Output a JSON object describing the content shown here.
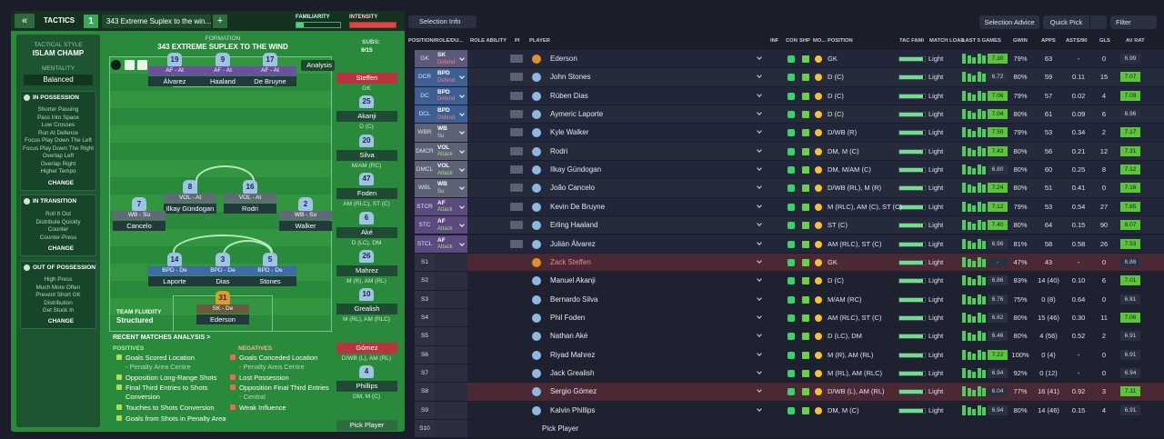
{
  "tactics_bar": {
    "back": "«",
    "label": "TACTICS",
    "slot": "1",
    "tactic_name": "343 Extreme Suplex to the win...",
    "add": "+",
    "familiarity": "FAMILIARITY",
    "intensity": "INTENSITY"
  },
  "sidebar": {
    "style_label": "TACTICAL STYLE",
    "style": "ISLAM CHAMP",
    "mentality_label": "MENTALITY",
    "mentality": "Balanced",
    "sections": [
      {
        "title": "IN POSSESSION",
        "items": [
          "Shorter Passing",
          "Pass Into Space",
          "Low Crosses",
          "Run At Defence",
          "Focus Play Down The Left",
          "Focus Play Down The Right",
          "Overlap Left",
          "Overlap Right",
          "Higher Tempo"
        ],
        "button": "CHANGE"
      },
      {
        "title": "IN TRANSITION",
        "items": [
          "Roll It Out",
          "Distribute Quickly",
          "Counter",
          "Counter-Press"
        ],
        "button": "CHANGE"
      },
      {
        "title": "OUT OF POSSESSION",
        "items": [
          "High Press",
          "Much More Often",
          "Prevent Short GK",
          "Distribution",
          "Get Stuck In"
        ],
        "button": "CHANGE"
      }
    ]
  },
  "pitch": {
    "formation_label": "FORMATION",
    "formation": "343 EXTREME SUPLEX TO THE WIND",
    "subs_label": "SUBS:",
    "subs_count": "9/15",
    "analysis": "Analysis",
    "fluidity_label": "TEAM FLUIDITY",
    "fluidity": "Structured",
    "players": [
      {
        "number": "19",
        "role": "AF - At",
        "name": "Álvarez"
      },
      {
        "number": "9",
        "role": "AF - At",
        "name": "Haaland"
      },
      {
        "number": "17",
        "role": "AF - At",
        "name": "De Bruyne"
      },
      {
        "number": "8",
        "role": "VOL - At",
        "name": "Ilkay Gündogan"
      },
      {
        "number": "16",
        "role": "VOL - At",
        "name": "Rodri"
      },
      {
        "number": "7",
        "role": "WB - Su",
        "name": "Cancelo"
      },
      {
        "number": "2",
        "role": "WB - Su",
        "name": "Walker"
      },
      {
        "number": "14",
        "role": "BPD - De",
        "name": "Laporte"
      },
      {
        "number": "3",
        "role": "BPD - De",
        "name": "Dias"
      },
      {
        "number": "5",
        "role": "BPD - De",
        "name": "Stones"
      },
      {
        "number": "31",
        "role": "SK - De",
        "name": "Ederson"
      }
    ]
  },
  "subs": [
    {
      "name": "Steffen",
      "position": "GK"
    },
    {
      "number": "25",
      "name": "Akanji",
      "position": "D (C)"
    },
    {
      "number": "20",
      "name": "Silva",
      "position": "M/AM (RC)"
    },
    {
      "number": "47",
      "name": "Foden",
      "position": "AM (RLC), ST (C)"
    },
    {
      "number": "6",
      "name": "Aké",
      "position": "D (LC), DM"
    },
    {
      "number": "26",
      "name": "Mahrez",
      "position": "M (R), AM (RL)"
    },
    {
      "number": "10",
      "name": "Grealish",
      "position": "M (RL), AM (RLC)"
    },
    {
      "name": "Gómez",
      "position": "D/WB (L), AM (RL)"
    },
    {
      "number": "4",
      "name": "Phillips",
      "position": "DM, M (C)"
    },
    {
      "name": "Pick Player"
    }
  ],
  "analysis": {
    "title": "RECENT MATCHES ANALYSIS >",
    "positives_label": "POSITIVES",
    "positives": [
      [
        "Goals Scored Location",
        "- Penalty Area Centre"
      ],
      [
        "Opposition Long-Range Shots"
      ],
      [
        "Final Third Entries to Shots",
        "Conversion"
      ],
      [
        "Touches to Shots Conversion"
      ],
      [
        "Goals from Shots in Penalty Area"
      ]
    ],
    "negatives_label": "NEGATIVES",
    "negatives": [
      [
        "Goals Conceded Location",
        "- Penalty Area Centre"
      ],
      [
        "Lost Possession"
      ],
      [
        "Opposition Final Third Entries",
        "- Central"
      ],
      [
        "Weak Influence"
      ]
    ]
  },
  "toolbar": {
    "selection_info": "Selection Info",
    "selection_advice": "Selection Advice",
    "quick_pick": "Quick Pick",
    "filter": "Filter"
  },
  "table": {
    "columns": [
      "POSITION/ROLE/DU...",
      "ROLE ABILITY",
      "PI",
      "PLAYER",
      "INF",
      "CON",
      "SHP",
      "MO...",
      "POSITION",
      "TAC FAMI",
      "MATCH LOAD",
      "LAST 5 GAMES",
      "GWIN",
      "APPS",
      "ASTS/90",
      "GLS",
      "AV RAT"
    ],
    "rows": [
      {
        "pos": "GK",
        "role": "SK",
        "duty": "Defend",
        "player": "Ederson",
        "position": "GK",
        "load": "Light",
        "last5": "7.30",
        "gwin": "79%",
        "apps": "63",
        "asts": "-",
        "gls": "0",
        "avrat": "6.99"
      },
      {
        "pos": "DCR",
        "role": "BPD",
        "duty": "Defend",
        "player": "John Stones",
        "position": "D (C)",
        "load": "Light",
        "last5": "6.72",
        "gwin": "80%",
        "apps": "59",
        "asts": "0.11",
        "gls": "15",
        "avrat": "7.07"
      },
      {
        "pos": "DC",
        "role": "BPD",
        "duty": "Defend",
        "player": "Rúben Dias",
        "position": "D (C)",
        "load": "Light",
        "last5": "7.06",
        "gwin": "79%",
        "apps": "57",
        "asts": "0.02",
        "gls": "4",
        "avrat": "7.09"
      },
      {
        "pos": "DCL",
        "role": "BPD",
        "duty": "Defend",
        "player": "Aymeric Laporte",
        "position": "D (C)",
        "load": "Light",
        "last5": "7.04",
        "gwin": "80%",
        "apps": "61",
        "asts": "0.09",
        "gls": "6",
        "avrat": "6.96"
      },
      {
        "pos": "WBR",
        "role": "WB",
        "duty": "Su",
        "player": "Kyle Walker",
        "position": "D/WB (R)",
        "load": "Light",
        "last5": "7.50",
        "gwin": "79%",
        "apps": "53",
        "asts": "0.34",
        "gls": "2",
        "avrat": "7.17"
      },
      {
        "pos": "DMCR",
        "role": "VOL",
        "duty": "Attack",
        "player": "Rodri",
        "position": "DM, M (C)",
        "load": "Light",
        "last5": "7.43",
        "gwin": "80%",
        "apps": "56",
        "asts": "0.21",
        "gls": "12",
        "avrat": "7.31"
      },
      {
        "pos": "DMCL",
        "role": "VOL",
        "duty": "Attack",
        "player": "Ilkay Gündogan",
        "position": "DM, M/AM (C)",
        "load": "Light",
        "last5": "6.80",
        "gwin": "80%",
        "apps": "60",
        "asts": "0.25",
        "gls": "8",
        "avrat": "7.12"
      },
      {
        "pos": "WBL",
        "role": "WB",
        "duty": "Su",
        "player": "João Cancelo",
        "position": "D/WB (RL), M (R)",
        "load": "Light",
        "last5": "7.24",
        "gwin": "80%",
        "apps": "51",
        "asts": "0.41",
        "gls": "0",
        "avrat": "7.16"
      },
      {
        "pos": "STCR",
        "role": "AF",
        "duty": "Attack",
        "player": "Kevin De Bruyne",
        "position": "M (RLC), AM (C), ST (C)",
        "load": "Light",
        "last5": "7.12",
        "gwin": "79%",
        "apps": "53",
        "asts": "0.54",
        "gls": "27",
        "avrat": "7.65"
      },
      {
        "pos": "STC",
        "role": "AF",
        "duty": "Attack",
        "player": "Erling Haaland",
        "position": "ST (C)",
        "load": "Light",
        "last5": "7.40",
        "gwin": "80%",
        "apps": "64",
        "asts": "0.15",
        "gls": "90",
        "avrat": "8.07"
      },
      {
        "pos": "STCL",
        "role": "AF",
        "duty": "Attack",
        "player": "Julián Álvarez",
        "position": "AM (RLC), ST (C)",
        "load": "Light",
        "last5": "6.98",
        "gwin": "81%",
        "apps": "58",
        "asts": "0.58",
        "gls": "26",
        "avrat": "7.53"
      },
      {
        "pos": "S1",
        "player": "Zack Steffen",
        "position": "GK",
        "load": "Light",
        "last5": "-",
        "gwin": "47%",
        "apps": "43",
        "asts": "-",
        "gls": "0",
        "avrat": "6.86"
      },
      {
        "pos": "S2",
        "player": "Manuel Akanji",
        "position": "D (C)",
        "load": "Light",
        "last5": "6.86",
        "gwin": "83%",
        "apps": "14 (40)",
        "asts": "0.10",
        "gls": "6",
        "avrat": "7.01"
      },
      {
        "pos": "S3",
        "player": "Bernardo Silva",
        "position": "M/AM (RC)",
        "load": "Light",
        "last5": "6.76",
        "gwin": "75%",
        "apps": "0 (8)",
        "asts": "0.64",
        "gls": "0",
        "avrat": "6.81"
      },
      {
        "pos": "S4",
        "player": "Phil Foden",
        "position": "AM (RLC), ST (C)",
        "load": "Light",
        "last5": "6.62",
        "gwin": "80%",
        "apps": "15 (46)",
        "asts": "0.30",
        "gls": "11",
        "avrat": "7.06"
      },
      {
        "pos": "S5",
        "player": "Nathan Aké",
        "position": "D (LC), DM",
        "load": "Light",
        "last5": "6.46",
        "gwin": "80%",
        "apps": "4 (56)",
        "asts": "0.52",
        "gls": "2",
        "avrat": "6.91"
      },
      {
        "pos": "S6",
        "player": "Riyad Mahrez",
        "position": "M (R), AM (RL)",
        "load": "Light",
        "last5": "7.22",
        "gwin": "100%",
        "apps": "0 (4)",
        "asts": "-",
        "gls": "0",
        "avrat": "6.91"
      },
      {
        "pos": "S7",
        "player": "Jack Grealish",
        "position": "M (RL), AM (RLC)",
        "load": "Light",
        "last5": "6.94",
        "gwin": "92%",
        "apps": "0 (12)",
        "asts": "-",
        "gls": "0",
        "avrat": "6.94"
      },
      {
        "pos": "S8",
        "player": "Sergio Gómez",
        "position": "D/WB (L), AM (RL)",
        "load": "Light",
        "last5": "6.04",
        "gwin": "77%",
        "apps": "16 (41)",
        "asts": "0.92",
        "gls": "3",
        "avrat": "7.11"
      },
      {
        "pos": "S9",
        "player": "Kalvin Phillips",
        "position": "DM, M (C)",
        "load": "Light",
        "last5": "6.94",
        "gwin": "80%",
        "apps": "14 (46)",
        "asts": "0.15",
        "gls": "4",
        "avrat": "6.91"
      },
      {
        "pos": "S10",
        "player": "Pick Player"
      }
    ]
  }
}
